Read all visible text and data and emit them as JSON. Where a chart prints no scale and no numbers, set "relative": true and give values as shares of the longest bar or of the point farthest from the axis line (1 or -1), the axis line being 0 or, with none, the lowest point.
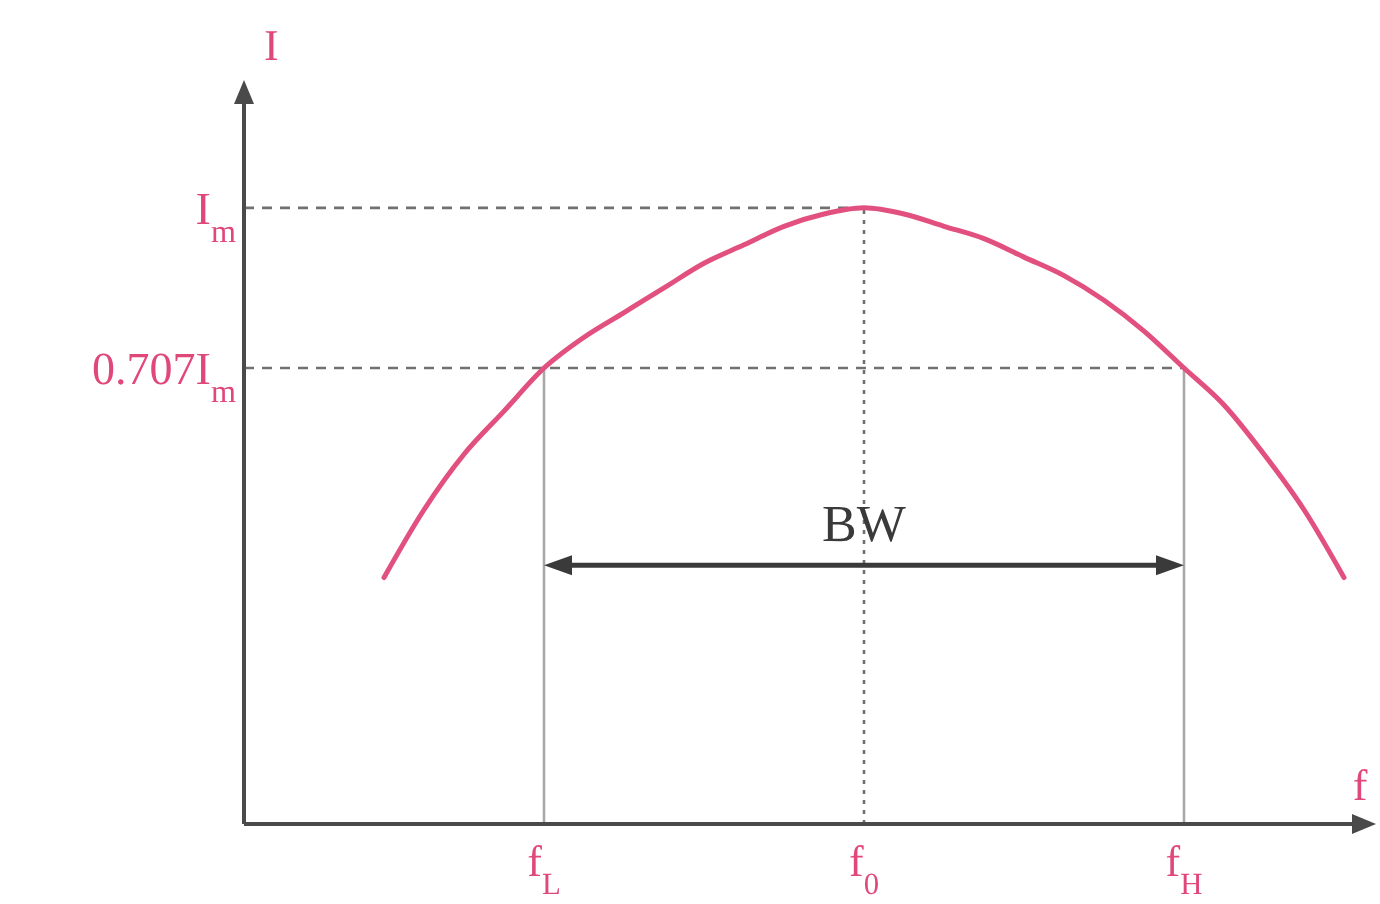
{
  "chart_data": {
    "type": "line",
    "xlabel": "f",
    "ylabel": "I",
    "relative": true,
    "categories": [
      null,
      null,
      null,
      null,
      null,
      null,
      null,
      "f$_{L}$",
      null,
      null,
      null,
      null,
      null,
      null,
      null,
      "f$_{0}$",
      null,
      null,
      null,
      null,
      null,
      null,
      null,
      "f$_{H}$",
      null,
      null,
      null,
      null
    ],
    "values": [
      null,
      null,
      null,
      0.4,
      0.51,
      0.6,
      0.67,
      0.74,
      0.79,
      0.83,
      0.87,
      0.91,
      0.94,
      0.97,
      0.99,
      1,
      0.99,
      0.97,
      0.95,
      0.92,
      0.89,
      0.85,
      0.8,
      0.74,
      0.68,
      0.6,
      0.51,
      0.4
    ],
    "color": "#e2507f",
    "line_style": "solid",
    "ref_lines": [
      {
        "axis": "y",
        "value": 1,
        "label": "I$_{m}$",
        "line_style": "dashed",
        "color": "#707070"
      },
      {
        "axis": "y",
        "value": 0.74,
        "label": "0.707I$_{m}$",
        "line_style": "dashed",
        "color": "#707070"
      },
      {
        "axis": "x",
        "value": "f$_{L}$",
        "line_style": "solid",
        "color": "#a8a8a8"
      },
      {
        "axis": "x",
        "value": "f$_{0}$",
        "line_style": "dotted",
        "color": "#707070"
      },
      {
        "axis": "x",
        "value": "f$_{H}$",
        "line_style": "solid",
        "color": "#a8a8a8"
      }
    ],
    "annotations": [
      {
        "text": "BW",
        "x": "f$_{0}$",
        "y": 0.42
      }
    ]
  }
}
